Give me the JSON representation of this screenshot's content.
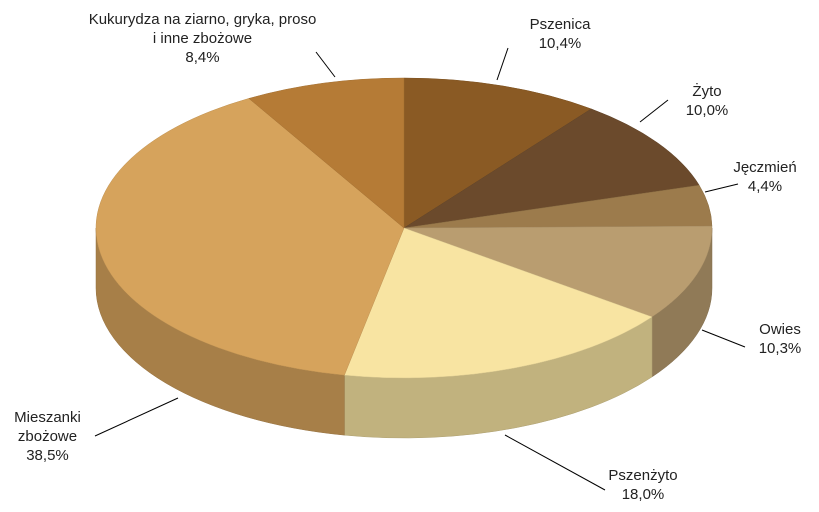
{
  "chart_data": {
    "type": "pie",
    "categories": [
      "Pszenica",
      "Żyto",
      "Jęczmień",
      "Owies",
      "Pszenżyto",
      "Mieszanki zbożowe",
      "Kukurydza na ziarno, gryka, proso i inne zbożowe"
    ],
    "values": [
      10.4,
      10.0,
      4.4,
      10.3,
      18.0,
      38.5,
      8.4
    ],
    "value_labels": [
      "10,4%",
      "10,0%",
      "4,4%",
      "10,3%",
      "18,0%",
      "38,5%",
      "8,4%"
    ],
    "colors": [
      "#8a5a24",
      "#6b4a2c",
      "#9c7b4c",
      "#b99d70",
      "#f8e4a2",
      "#d6a35c",
      "#b57b36"
    ]
  }
}
